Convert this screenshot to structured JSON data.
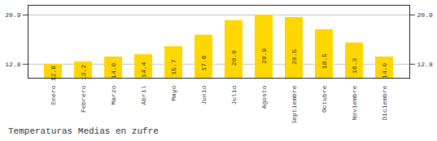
{
  "chart_data": {
    "type": "bar",
    "title": "Temperaturas Medias en zufre",
    "categories": [
      "Enero",
      "Febrero",
      "Marzo",
      "Abril",
      "Mayo",
      "Junio",
      "Julio",
      "Agosto",
      "Septiembre",
      "Octubre",
      "Noviembre",
      "Diciembre"
    ],
    "values": [
      12.8,
      13.2,
      14.0,
      14.4,
      15.7,
      17.6,
      20.0,
      20.9,
      20.5,
      18.5,
      16.3,
      14.0
    ],
    "value_labels": [
      "12.8",
      "13.2",
      "14.0",
      "14.4",
      "15.7",
      "17.6",
      "20.0",
      "20.9",
      "20.5",
      "18.5",
      "16.3",
      "14.0"
    ],
    "color": "#FFD700",
    "ylim": [
      10.5,
      22.5
    ],
    "yticks": [
      12.8,
      20.9
    ],
    "grid": true,
    "data_labels": true
  }
}
